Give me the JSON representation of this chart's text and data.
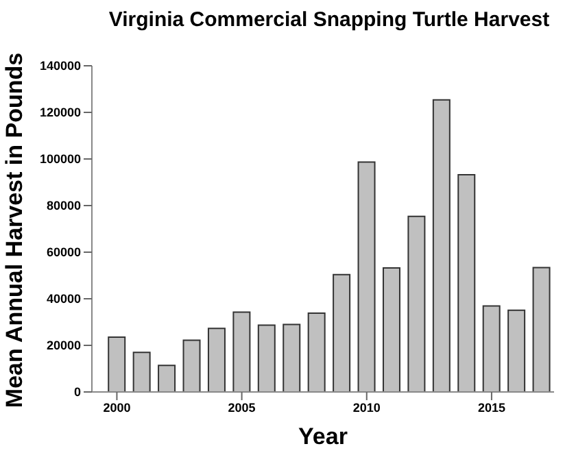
{
  "chart_data": {
    "type": "bar",
    "title": "Virginia Commercial Snapping Turtle Harvest",
    "xlabel": "Year",
    "ylabel": "Mean Annual Harvest in Pounds",
    "x": [
      2000,
      2001,
      2002,
      2003,
      2004,
      2005,
      2006,
      2007,
      2008,
      2009,
      2010,
      2011,
      2012,
      2013,
      2014,
      2015,
      2016,
      2017
    ],
    "values": [
      23500,
      17000,
      11400,
      22200,
      27300,
      34300,
      28700,
      29000,
      33800,
      50400,
      98700,
      53200,
      75400,
      125400,
      93200,
      36900,
      35100,
      53400
    ],
    "color": "#c0c0c0",
    "xlim": [
      1999,
      2017.5
    ],
    "xticks": [
      2000,
      2005,
      2010,
      2015
    ],
    "ylim": [
      0,
      140000
    ],
    "yticks": [
      0,
      20000,
      40000,
      60000,
      80000,
      100000,
      120000,
      140000
    ],
    "grid": false,
    "legend": false
  }
}
